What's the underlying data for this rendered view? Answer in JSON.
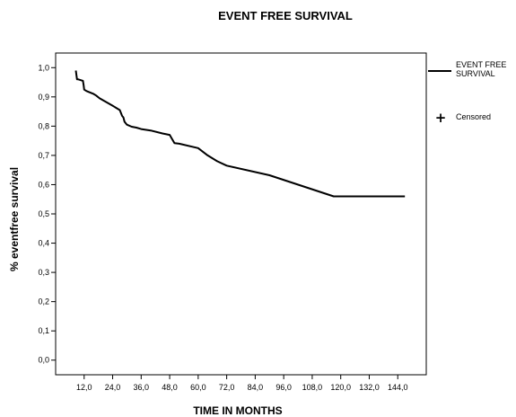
{
  "chart_data": {
    "type": "line",
    "title": "EVENT FREE SURVIVAL",
    "xlabel": "TIME IN MONTHS",
    "ylabel": "% eventfree survival",
    "xlim": [
      0,
      156
    ],
    "ylim": [
      -0.05,
      1.05
    ],
    "x_ticks": [
      12,
      24,
      36,
      48,
      60,
      72,
      84,
      96,
      108,
      120,
      132,
      144
    ],
    "x_tick_labels": [
      "12,0",
      "24,0",
      "36,0",
      "48,0",
      "60,0",
      "72,0",
      "84,0",
      "96,0",
      "108,0",
      "120,0",
      "132,0",
      "144,0"
    ],
    "y_ticks": [
      0,
      0.1,
      0.2,
      0.3,
      0.4,
      0.5,
      0.6,
      0.7,
      0.8,
      0.9,
      1.0
    ],
    "y_tick_labels": [
      "0,0",
      "0,1",
      "0,2",
      "0,3",
      "0,4",
      "0,5",
      "0,6",
      "0,7",
      "0,8",
      "0,9",
      "1,0"
    ],
    "grid": false,
    "legend_position": "top-right",
    "series": [
      {
        "name": "EVENT FREE SURVIVAL",
        "color": "#000000",
        "x": [
          8.5,
          9.0,
          9.5,
          11.5,
          11.8,
          12.0,
          13.0,
          16.0,
          17.0,
          18.5,
          24.0,
          27.0,
          28.0,
          28.5,
          29.0,
          30.0,
          32.0,
          34.0,
          36.0,
          40.0,
          45.0,
          48.0,
          50.0,
          52.0,
          60.0,
          64.0,
          68.0,
          72.0,
          90.0,
          117.0,
          147.0
        ],
        "y": [
          0.99,
          0.96,
          0.96,
          0.955,
          0.94,
          0.925,
          0.92,
          0.91,
          0.905,
          0.895,
          0.87,
          0.855,
          0.835,
          0.83,
          0.815,
          0.805,
          0.798,
          0.795,
          0.79,
          0.785,
          0.775,
          0.77,
          0.742,
          0.74,
          0.725,
          0.7,
          0.68,
          0.665,
          0.632,
          0.56,
          0.56
        ]
      }
    ],
    "legend": {
      "series_label": "EVENT FREE SURVIVAL",
      "censored_label": "Censored",
      "censored_symbol": "+"
    }
  }
}
